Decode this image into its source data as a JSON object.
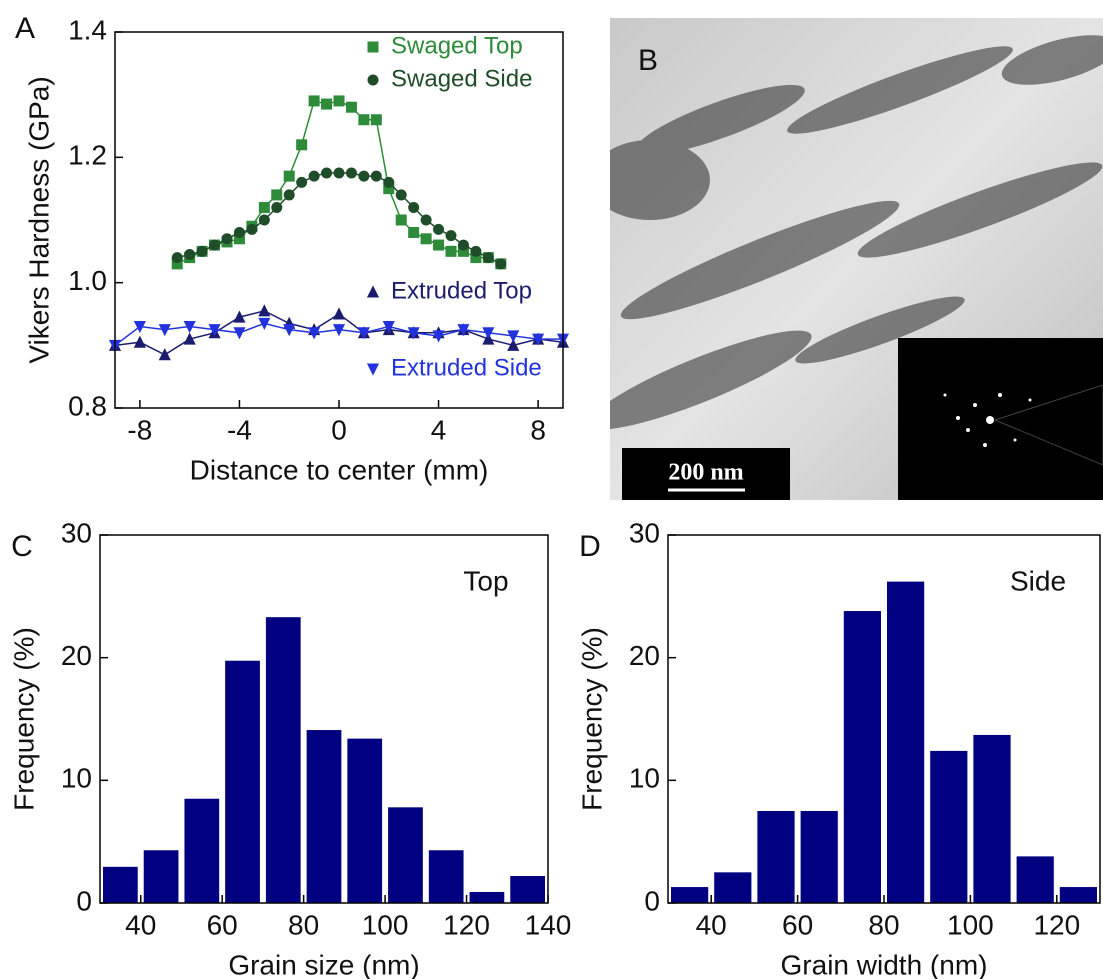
{
  "chart_data": [
    {
      "type": "line",
      "label": "A",
      "xlabel": "Distance to center (mm)",
      "ylabel": "Vikers Hardness (GPa)",
      "xlim": [
        -9,
        9
      ],
      "ylim": [
        0.8,
        1.4
      ],
      "xticks": [
        -8,
        -4,
        0,
        4,
        8
      ],
      "yticks": [
        0.8,
        {
          "value": 1,
          "label": "1.0"
        },
        1.2,
        1.4
      ],
      "legend": "upper right",
      "series": [
        {
          "name": "Swaged Top",
          "color": "#2e8b3a",
          "marker": "square",
          "x": [
            -6.5,
            -6,
            -5.5,
            -5,
            -4.5,
            -4,
            -3.5,
            -3,
            -2.5,
            -2,
            -1.5,
            -1,
            -0.5,
            0,
            0.5,
            1,
            1.5,
            2,
            2.5,
            3,
            3.5,
            4,
            4.5,
            5,
            5.5,
            6,
            6.5
          ],
          "values": [
            1.03,
            1.04,
            1.05,
            1.06,
            1.065,
            1.07,
            1.09,
            1.12,
            1.14,
            1.17,
            1.22,
            1.29,
            1.285,
            1.29,
            1.28,
            1.26,
            1.26,
            1.15,
            1.1,
            1.08,
            1.07,
            1.06,
            1.05,
            1.05,
            1.04,
            1.04,
            1.03
          ]
        },
        {
          "name": "Swaged Side",
          "color": "#1f4d2a",
          "marker": "circle",
          "x": [
            -6.5,
            -6,
            -5.5,
            -5,
            -4.5,
            -4,
            -3.5,
            -3,
            -2.5,
            -2,
            -1.5,
            -1,
            -0.5,
            0,
            0.5,
            1,
            1.5,
            2,
            2.5,
            3,
            3.5,
            4,
            4.5,
            5,
            5.5,
            6,
            6.5
          ],
          "values": [
            1.04,
            1.045,
            1.05,
            1.06,
            1.07,
            1.08,
            1.085,
            1.1,
            1.12,
            1.14,
            1.16,
            1.17,
            1.175,
            1.175,
            1.175,
            1.17,
            1.17,
            1.16,
            1.14,
            1.12,
            1.1,
            1.085,
            1.075,
            1.06,
            1.05,
            1.04,
            1.03
          ]
        },
        {
          "name": "Extruded Top",
          "color": "#1c1c6e",
          "marker": "triangle-up",
          "x": [
            -9,
            -8,
            -7,
            -6,
            -5,
            -4,
            -3,
            -2,
            -1,
            0,
            1,
            2,
            3,
            4,
            5,
            6,
            7,
            8,
            9
          ],
          "values": [
            0.9,
            0.905,
            0.885,
            0.91,
            0.92,
            0.945,
            0.955,
            0.935,
            0.925,
            0.95,
            0.92,
            0.925,
            0.92,
            0.92,
            0.925,
            0.91,
            0.9,
            0.91,
            0.905
          ]
        },
        {
          "name": "Extruded Side",
          "color": "#2233dd",
          "marker": "triangle-down",
          "x": [
            -9,
            -8,
            -7,
            -6,
            -5,
            -4,
            -3,
            -2,
            -1,
            0,
            1,
            2,
            3,
            4,
            5,
            6,
            7,
            8,
            9
          ],
          "values": [
            0.9,
            0.93,
            0.925,
            0.93,
            0.925,
            0.92,
            0.935,
            0.925,
            0.92,
            0.925,
            0.92,
            0.93,
            0.92,
            0.915,
            0.925,
            0.92,
            0.915,
            0.91,
            0.91
          ]
        }
      ]
    },
    {
      "type": "histogram",
      "label": "C",
      "annotation": "Top",
      "xlabel": "Grain size (nm)",
      "ylabel": "Frequency (%)",
      "color": "#000080",
      "bins": [
        30,
        40,
        50,
        60,
        70,
        80,
        90,
        100,
        110,
        120,
        130,
        140
      ],
      "values": [
        2.95,
        4.3,
        8.5,
        19.75,
        23.3,
        14.1,
        13.4,
        7.8,
        4.3,
        0.9,
        2.2
      ],
      "xlim": [
        30,
        140
      ],
      "ylim": [
        0,
        30
      ],
      "xticks": [
        40,
        60,
        80,
        100,
        120,
        140
      ],
      "yticks": [
        0,
        10,
        20,
        30
      ]
    },
    {
      "type": "histogram",
      "label": "D",
      "annotation": "Side",
      "xlabel": "Grain width (nm)",
      "ylabel": "Frequency (%)",
      "color": "#000080",
      "bins": [
        30,
        40,
        50,
        60,
        70,
        80,
        90,
        100,
        110,
        120,
        130
      ],
      "values": [
        1.3,
        2.5,
        7.5,
        7.5,
        23.8,
        26.2,
        12.4,
        13.7,
        3.8,
        1.3
      ],
      "xlim": [
        30,
        130
      ],
      "ylim": [
        0,
        30
      ],
      "xticks": [
        40,
        60,
        80,
        100,
        120
      ],
      "yticks": [
        0,
        10,
        20,
        30
      ]
    }
  ],
  "image_panel": {
    "label": "B",
    "scale_bar": "200 nm"
  }
}
